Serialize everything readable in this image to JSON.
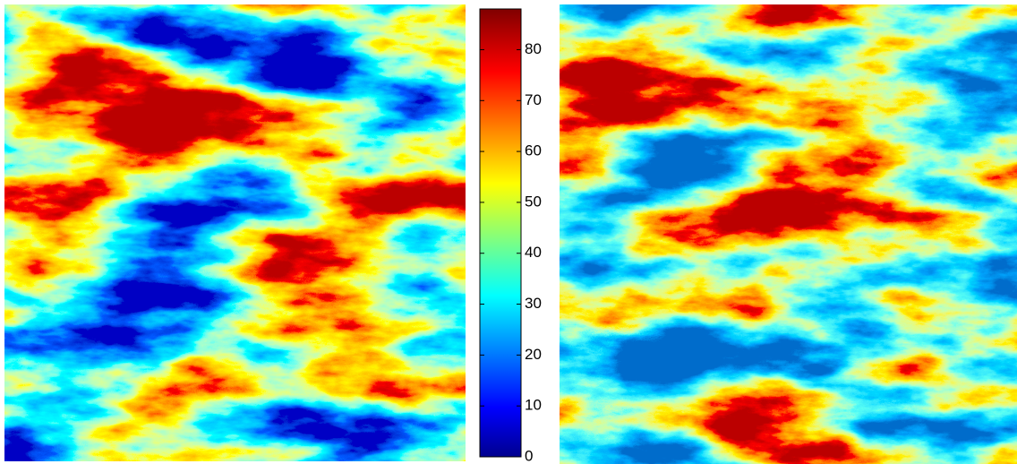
{
  "chart_data": {
    "type": "heatmap",
    "colormap": "jet",
    "clim": [
      0,
      88
    ],
    "ticks": [
      0,
      10,
      20,
      30,
      40,
      50,
      60,
      70,
      80
    ]
  }
}
